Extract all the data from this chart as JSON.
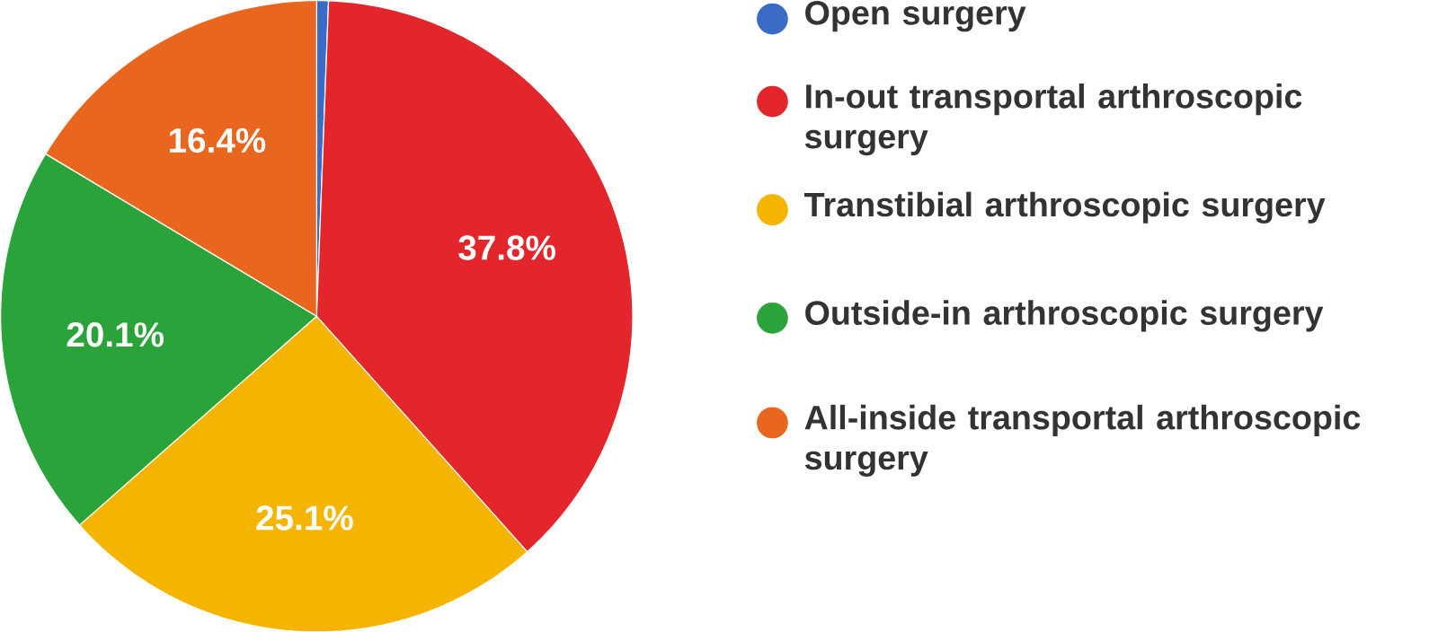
{
  "chart_data": {
    "type": "pie",
    "categories": [
      "Open surgery",
      "In-out transportal arthroscopic surgery",
      "Transtibial arthroscopic surgery",
      "Outside-in arthroscopic surgery",
      "All-inside transportal arthroscopic surgery"
    ],
    "values": [
      0.6,
      37.8,
      25.1,
      20.1,
      16.4
    ],
    "value_labels": [
      null,
      "37.8%",
      "25.1%",
      "20.1%",
      "16.4%"
    ],
    "colors": [
      "#3a6cc6",
      "#e2262b",
      "#f4b400",
      "#2aa33a",
      "#e9661f"
    ],
    "legend": "right"
  }
}
